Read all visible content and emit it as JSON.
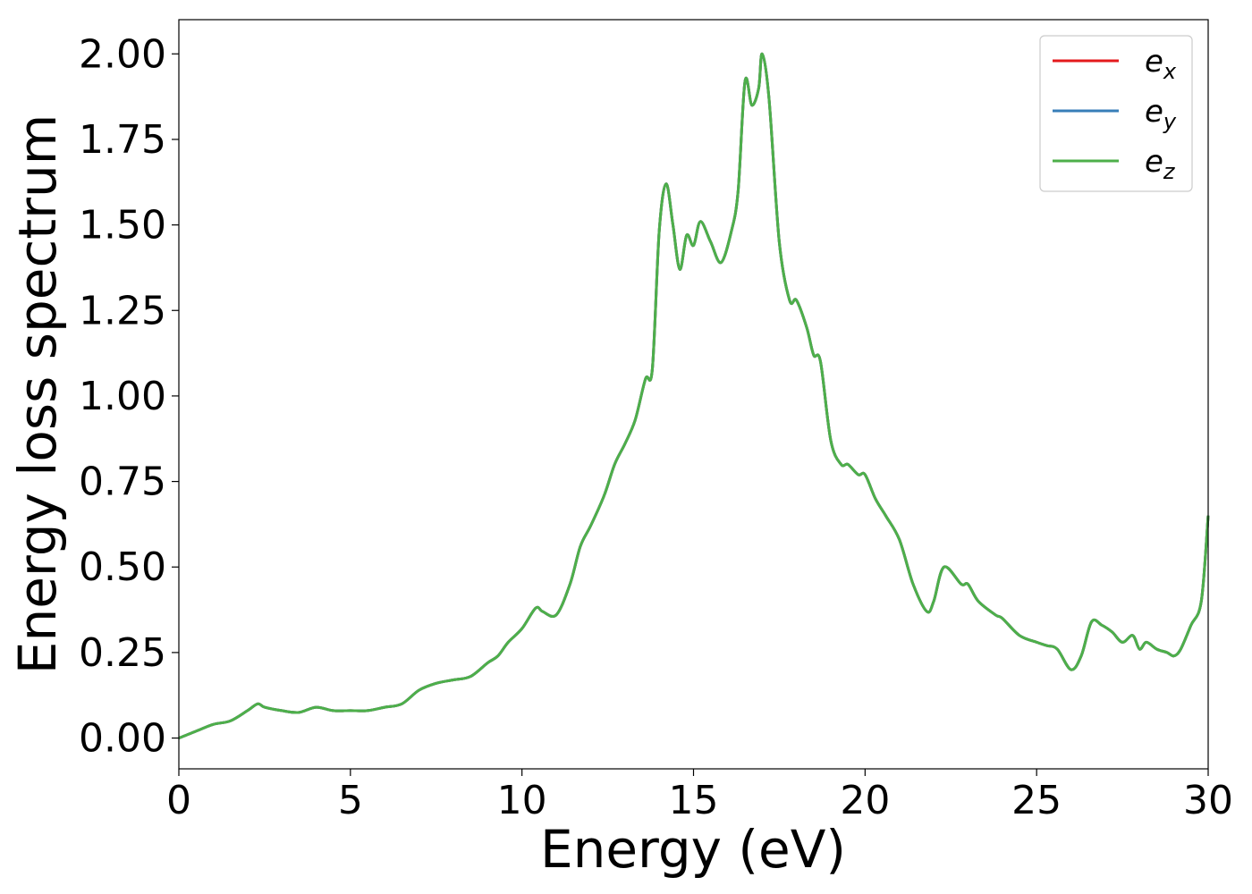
{
  "chart_data": {
    "type": "line",
    "xlabel": "Energy (eV)",
    "ylabel": "Energy loss spectrum",
    "xlim": [
      0,
      30
    ],
    "ylim": [
      -0.09,
      2.1
    ],
    "xticks": [
      0,
      5,
      10,
      15,
      20,
      25,
      30
    ],
    "xtick_labels": [
      "0",
      "5",
      "10",
      "15",
      "20",
      "25",
      "30"
    ],
    "yticks": [
      0,
      0.25,
      0.5,
      0.75,
      1.0,
      1.25,
      1.5,
      1.75,
      2.0
    ],
    "ytick_labels": [
      "0.00",
      "0.25",
      "0.50",
      "0.75",
      "1.00",
      "1.25",
      "1.50",
      "1.75",
      "2.00"
    ],
    "grid": false,
    "legend_position": "top-right",
    "x": [
      0,
      0.5,
      1.0,
      1.5,
      2.0,
      2.3,
      2.5,
      3.0,
      3.5,
      4.0,
      4.5,
      5.0,
      5.5,
      6.0,
      6.5,
      7.0,
      7.5,
      8.0,
      8.5,
      9.0,
      9.3,
      9.6,
      10.0,
      10.4,
      10.6,
      11.0,
      11.4,
      11.7,
      12.0,
      12.4,
      12.7,
      13.0,
      13.3,
      13.6,
      13.8,
      14.0,
      14.2,
      14.4,
      14.6,
      14.8,
      15.0,
      15.2,
      15.5,
      15.8,
      16.1,
      16.3,
      16.5,
      16.7,
      16.9,
      17.0,
      17.2,
      17.5,
      17.8,
      18.0,
      18.3,
      18.5,
      18.7,
      19.0,
      19.3,
      19.5,
      19.8,
      20.0,
      20.3,
      20.6,
      21.0,
      21.4,
      21.8,
      22.0,
      22.3,
      22.8,
      23.0,
      23.3,
      23.8,
      24.0,
      24.5,
      25.0,
      25.3,
      25.6,
      26.0,
      26.3,
      26.6,
      26.9,
      27.2,
      27.5,
      27.8,
      28.0,
      28.2,
      28.5,
      28.8,
      29.0,
      29.2,
      29.5,
      29.8,
      30.0
    ],
    "series": [
      {
        "name": "e_x",
        "label": "e",
        "sub": "x",
        "color": "#e41a1c",
        "values": [
          0.0,
          0.02,
          0.04,
          0.05,
          0.08,
          0.1,
          0.09,
          0.08,
          0.075,
          0.09,
          0.08,
          0.08,
          0.08,
          0.09,
          0.1,
          0.14,
          0.16,
          0.17,
          0.18,
          0.22,
          0.24,
          0.28,
          0.32,
          0.38,
          0.37,
          0.36,
          0.45,
          0.56,
          0.62,
          0.71,
          0.8,
          0.86,
          0.93,
          1.05,
          1.08,
          1.48,
          1.62,
          1.5,
          1.37,
          1.47,
          1.44,
          1.51,
          1.45,
          1.39,
          1.48,
          1.6,
          1.92,
          1.85,
          1.9,
          2.0,
          1.87,
          1.45,
          1.28,
          1.28,
          1.2,
          1.12,
          1.1,
          0.87,
          0.8,
          0.8,
          0.77,
          0.77,
          0.7,
          0.65,
          0.58,
          0.45,
          0.37,
          0.4,
          0.5,
          0.45,
          0.45,
          0.4,
          0.36,
          0.35,
          0.3,
          0.28,
          0.27,
          0.26,
          0.2,
          0.24,
          0.34,
          0.33,
          0.31,
          0.28,
          0.3,
          0.26,
          0.28,
          0.26,
          0.25,
          0.24,
          0.26,
          0.33,
          0.4,
          0.65
        ]
      },
      {
        "name": "e_y",
        "label": "e",
        "sub": "y",
        "color": "#377eb8",
        "values": [
          0.0,
          0.02,
          0.04,
          0.05,
          0.08,
          0.1,
          0.09,
          0.08,
          0.075,
          0.09,
          0.08,
          0.08,
          0.08,
          0.09,
          0.1,
          0.14,
          0.16,
          0.17,
          0.18,
          0.22,
          0.24,
          0.28,
          0.32,
          0.38,
          0.37,
          0.36,
          0.45,
          0.56,
          0.62,
          0.71,
          0.8,
          0.86,
          0.93,
          1.05,
          1.08,
          1.48,
          1.62,
          1.5,
          1.37,
          1.47,
          1.44,
          1.51,
          1.45,
          1.39,
          1.48,
          1.6,
          1.92,
          1.85,
          1.9,
          2.0,
          1.87,
          1.45,
          1.28,
          1.28,
          1.2,
          1.12,
          1.1,
          0.87,
          0.8,
          0.8,
          0.77,
          0.77,
          0.7,
          0.65,
          0.58,
          0.45,
          0.37,
          0.4,
          0.5,
          0.45,
          0.45,
          0.4,
          0.36,
          0.35,
          0.3,
          0.28,
          0.27,
          0.26,
          0.2,
          0.24,
          0.34,
          0.33,
          0.31,
          0.28,
          0.3,
          0.26,
          0.28,
          0.26,
          0.25,
          0.24,
          0.26,
          0.33,
          0.4,
          0.65
        ]
      },
      {
        "name": "e_z",
        "label": "e",
        "sub": "z",
        "color": "#4daf4a",
        "values": [
          0.0,
          0.02,
          0.04,
          0.05,
          0.08,
          0.1,
          0.09,
          0.08,
          0.075,
          0.09,
          0.08,
          0.08,
          0.08,
          0.09,
          0.1,
          0.14,
          0.16,
          0.17,
          0.18,
          0.22,
          0.24,
          0.28,
          0.32,
          0.38,
          0.37,
          0.36,
          0.45,
          0.56,
          0.62,
          0.71,
          0.8,
          0.86,
          0.93,
          1.05,
          1.08,
          1.48,
          1.62,
          1.5,
          1.37,
          1.47,
          1.44,
          1.51,
          1.45,
          1.39,
          1.48,
          1.6,
          1.92,
          1.85,
          1.9,
          2.0,
          1.87,
          1.45,
          1.28,
          1.28,
          1.2,
          1.12,
          1.1,
          0.87,
          0.8,
          0.8,
          0.77,
          0.77,
          0.7,
          0.65,
          0.58,
          0.45,
          0.37,
          0.4,
          0.5,
          0.45,
          0.45,
          0.4,
          0.36,
          0.35,
          0.3,
          0.28,
          0.27,
          0.26,
          0.2,
          0.24,
          0.34,
          0.33,
          0.31,
          0.28,
          0.3,
          0.26,
          0.28,
          0.26,
          0.25,
          0.24,
          0.26,
          0.33,
          0.4,
          0.65
        ]
      }
    ]
  }
}
